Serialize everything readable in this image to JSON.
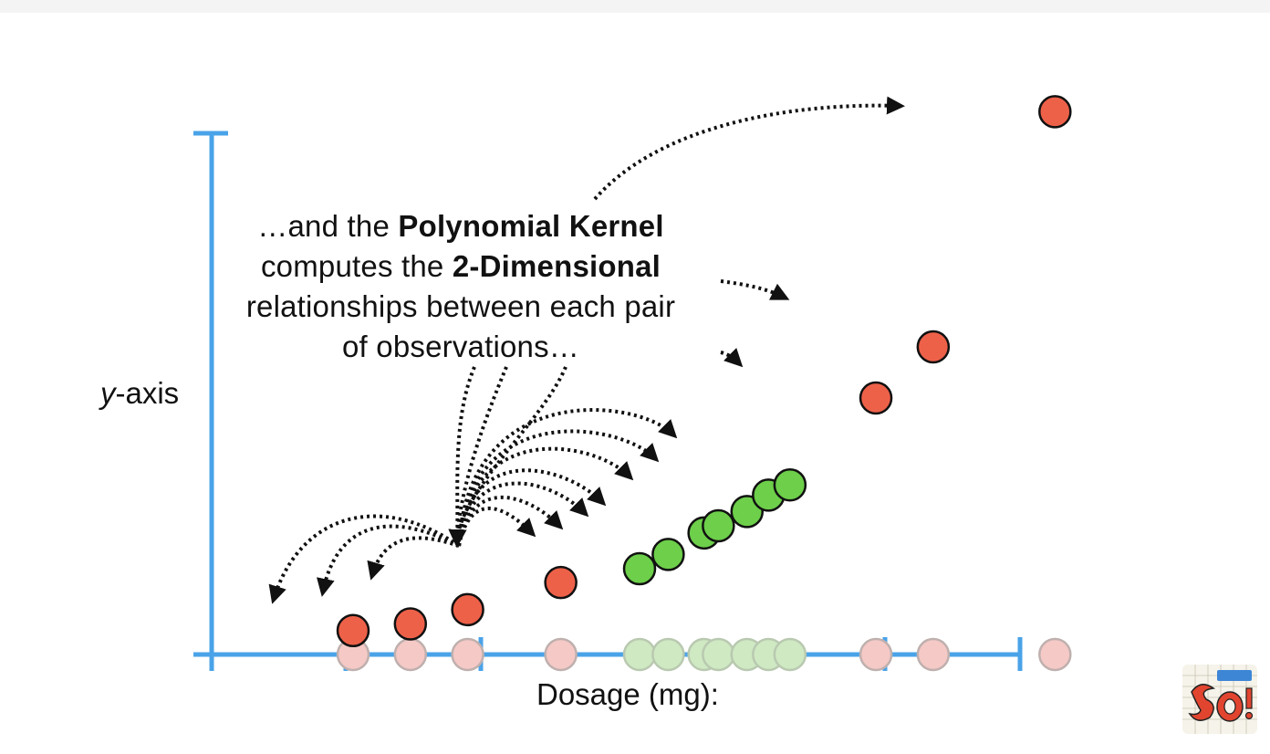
{
  "caption": {
    "line1_pre": "…and the ",
    "line1_bold": "Polynomial Kernel",
    "line2_pre": "computes the ",
    "line2_bold": "2-Dimensional",
    "line3": "relationships between each pair",
    "line4": "of observations…"
  },
  "axes": {
    "y_label_italic": "y",
    "y_label_rest": "-axis",
    "x_label": "Dosage (mg):"
  },
  "colors": {
    "axis": "#4aa3e8",
    "red": "#ee6149",
    "red_faded": "#f5c9c6",
    "green": "#6dcf4a",
    "green_faded": "#cfe9c3",
    "arrow": "#111111"
  },
  "observations": [
    {
      "class": "red",
      "dosage": 1.0,
      "y": 0.45
    },
    {
      "class": "red",
      "dosage": 1.4,
      "y": 0.58
    },
    {
      "class": "red",
      "dosage": 1.8,
      "y": 0.86
    },
    {
      "class": "red",
      "dosage": 2.45,
      "y": 1.39
    },
    {
      "class": "green",
      "dosage": 3.0,
      "y": 1.66
    },
    {
      "class": "green",
      "dosage": 3.2,
      "y": 1.94
    },
    {
      "class": "green",
      "dosage": 3.45,
      "y": 2.36
    },
    {
      "class": "green",
      "dosage": 3.55,
      "y": 2.5
    },
    {
      "class": "green",
      "dosage": 3.75,
      "y": 2.78
    },
    {
      "class": "green",
      "dosage": 3.9,
      "y": 3.1
    },
    {
      "class": "green",
      "dosage": 4.05,
      "y": 3.3
    },
    {
      "class": "red",
      "dosage": 4.65,
      "y": 5.0
    },
    {
      "class": "red",
      "dosage": 5.05,
      "y": 6.0
    },
    {
      "class": "red",
      "dosage": 5.9,
      "y": 10.6
    }
  ],
  "logo": {
    "icon": "squatch-logo",
    "text": "SQ!"
  }
}
